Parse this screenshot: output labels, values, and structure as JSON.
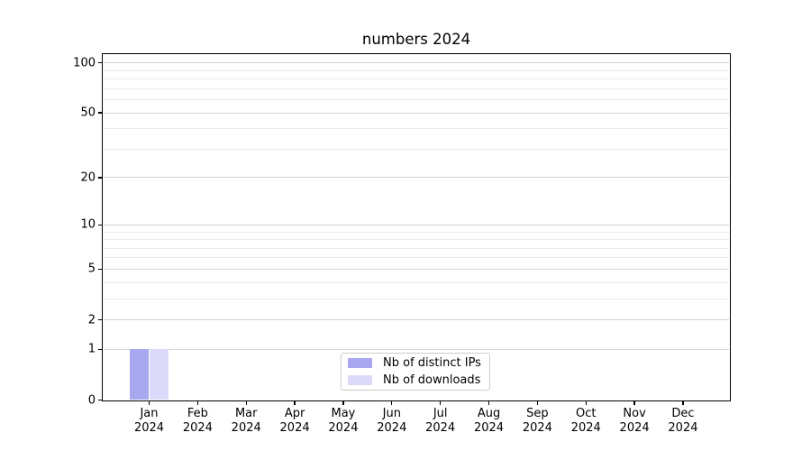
{
  "page": {
    "background": "#ffffff"
  },
  "colors": {
    "axis": "#000000",
    "text": "#000000",
    "grid_major": "#d4d4d4",
    "grid_minor": "#ececec",
    "legend_border": "#cccccc",
    "series_distinct_ips": "#a8a8f0",
    "series_downloads": "#dbdbf9"
  },
  "legend": {
    "items": [
      {
        "label": "Nb of distinct IPs",
        "color": "#a8a8f0"
      },
      {
        "label": "Nb of downloads",
        "color": "#dbdbf9"
      }
    ]
  },
  "chart_data": {
    "type": "bar",
    "title": "numbers 2024",
    "x_months": [
      "Jan",
      "Feb",
      "Mar",
      "Apr",
      "May",
      "Jun",
      "Jul",
      "Aug",
      "Sep",
      "Oct",
      "Nov",
      "Dec"
    ],
    "x_year": "2024",
    "categories": [
      "Jan 2024",
      "Feb 2024",
      "Mar 2024",
      "Apr 2024",
      "May 2024",
      "Jun 2024",
      "Jul 2024",
      "Aug 2024",
      "Sep 2024",
      "Oct 2024",
      "Nov 2024",
      "Dec 2024"
    ],
    "series": [
      {
        "name": "Nb of distinct IPs",
        "color": "#a8a8f0",
        "values": [
          1,
          0,
          0,
          0,
          0,
          0,
          0,
          0,
          0,
          0,
          0,
          0
        ]
      },
      {
        "name": "Nb of downloads",
        "color": "#dbdbf9",
        "values": [
          1,
          0,
          0,
          0,
          0,
          0,
          0,
          0,
          0,
          0,
          0,
          0
        ]
      }
    ],
    "xlabel": "",
    "ylabel": "",
    "yscale": "log1p",
    "ylim": [
      0,
      113
    ],
    "y_ticks": [
      0,
      1,
      2,
      5,
      10,
      20,
      50,
      100
    ],
    "y_minor_ticks": [
      3,
      4,
      6,
      7,
      8,
      9,
      30,
      40,
      60,
      70,
      80,
      90
    ],
    "grid": true,
    "legend_position": "lower-center"
  }
}
